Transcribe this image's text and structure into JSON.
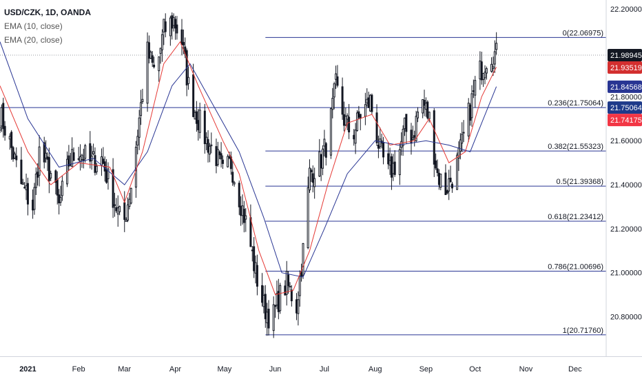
{
  "legend": {
    "symbol": "USD/CZK, 1D, OANDA",
    "ema10": "EMA (10, close)",
    "ema20": "EMA (20, close)"
  },
  "colors": {
    "candle": "#131722",
    "ema10": "#e53935",
    "ema20": "#283593",
    "fib": "#283593",
    "price_badge": "#131722",
    "ema10_badge": "#d32f2f",
    "ema20_badge": "#283593",
    "fib_badge": "#1e3a8a",
    "red_badge": "#f23645"
  },
  "chart_data": {
    "type": "candlestick",
    "y_range": [
      20.62,
      22.24
    ],
    "y_ticks": [
      "22.20000",
      "21.80000",
      "21.60000",
      "21.40000",
      "21.20000",
      "21.00000",
      "20.80000"
    ],
    "y_tick_values": [
      22.2,
      21.8,
      21.6,
      21.4,
      21.2,
      21.0,
      20.8
    ],
    "x_labels": [
      {
        "label": "2021",
        "date": "2021-01-01",
        "bold": true
      },
      {
        "label": "Feb",
        "date": "2021-02-01"
      },
      {
        "label": "Mar",
        "date": "2021-03-01"
      },
      {
        "label": "Apr",
        "date": "2021-04-01"
      },
      {
        "label": "May",
        "date": "2021-05-01"
      },
      {
        "label": "Jun",
        "date": "2021-06-01"
      },
      {
        "label": "Jul",
        "date": "2021-07-01"
      },
      {
        "label": "Aug",
        "date": "2021-08-01"
      },
      {
        "label": "Sep",
        "date": "2021-09-01"
      },
      {
        "label": "Oct",
        "date": "2021-10-01"
      },
      {
        "label": "Nov",
        "date": "2021-11-01"
      },
      {
        "label": "Dec",
        "date": "2021-12-01"
      }
    ],
    "x_range": [
      "2020-12-15",
      "2021-12-20"
    ],
    "fib_levels": [
      {
        "label": "0(22.06975)",
        "value": 22.06975
      },
      {
        "label": "0.236(21.75064)",
        "value": 21.75064
      },
      {
        "label": "0.382(21.55323)",
        "value": 21.55323
      },
      {
        "label": "0.5(21.39368)",
        "value": 21.39368
      },
      {
        "label": "0.618(21.23412)",
        "value": 21.23412
      },
      {
        "label": "0.786(21.00696)",
        "value": 21.00696
      },
      {
        "label": "1(20.71760)",
        "value": 20.7176
      }
    ],
    "fib_start": "2021-05-26",
    "price_badges": [
      {
        "label": "21.98945",
        "value": 21.98945,
        "kind": "price"
      },
      {
        "label": "21.93519",
        "value": 21.93519,
        "kind": "ema10"
      },
      {
        "label": "21.84568",
        "value": 21.84568,
        "kind": "ema20"
      },
      {
        "label": "21.75064",
        "value": 21.75064,
        "kind": "fib"
      },
      {
        "label": "21.74175",
        "value": 21.74175,
        "kind": "red"
      }
    ],
    "current_price": 21.98945,
    "close_path": [
      [
        "2020-12-15",
        21.72
      ],
      [
        "2020-12-20",
        21.62
      ],
      [
        "2020-12-28",
        21.4
      ],
      [
        "2021-01-04",
        21.3
      ],
      [
        "2021-01-08",
        21.55
      ],
      [
        "2021-01-15",
        21.45
      ],
      [
        "2021-01-20",
        21.3
      ],
      [
        "2021-01-26",
        21.5
      ],
      [
        "2021-02-01",
        21.56
      ],
      [
        "2021-02-08",
        21.5
      ],
      [
        "2021-02-15",
        21.52
      ],
      [
        "2021-02-22",
        21.35
      ],
      [
        "2021-02-28",
        21.2
      ],
      [
        "2021-03-05",
        21.4
      ],
      [
        "2021-03-10",
        21.7
      ],
      [
        "2021-03-15",
        22.0
      ],
      [
        "2021-03-20",
        21.9
      ],
      [
        "2021-03-25",
        22.1
      ],
      [
        "2021-03-31",
        22.15
      ],
      [
        "2021-04-05",
        22.05
      ],
      [
        "2021-04-10",
        21.8
      ],
      [
        "2021-04-15",
        21.7
      ],
      [
        "2021-04-20",
        21.6
      ],
      [
        "2021-04-25",
        21.55
      ],
      [
        "2021-04-30",
        21.45
      ],
      [
        "2021-05-05",
        21.5
      ],
      [
        "2021-05-10",
        21.35
      ],
      [
        "2021-05-15",
        21.2
      ],
      [
        "2021-05-20",
        21.0
      ],
      [
        "2021-05-25",
        20.85
      ],
      [
        "2021-05-30",
        20.78
      ],
      [
        "2021-06-03",
        20.88
      ],
      [
        "2021-06-08",
        20.95
      ],
      [
        "2021-06-14",
        20.85
      ],
      [
        "2021-06-18",
        21.1
      ],
      [
        "2021-06-22",
        21.45
      ],
      [
        "2021-06-28",
        21.5
      ],
      [
        "2021-07-03",
        21.6
      ],
      [
        "2021-07-08",
        21.85
      ],
      [
        "2021-07-13",
        21.7
      ],
      [
        "2021-07-18",
        21.62
      ],
      [
        "2021-07-23",
        21.72
      ],
      [
        "2021-07-29",
        21.78
      ],
      [
        "2021-08-04",
        21.55
      ],
      [
        "2021-08-09",
        21.45
      ],
      [
        "2021-08-14",
        21.5
      ],
      [
        "2021-08-19",
        21.65
      ],
      [
        "2021-08-24",
        21.62
      ],
      [
        "2021-08-29",
        21.8
      ],
      [
        "2021-09-03",
        21.7
      ],
      [
        "2021-09-08",
        21.45
      ],
      [
        "2021-09-13",
        21.38
      ],
      [
        "2021-09-18",
        21.45
      ],
      [
        "2021-09-23",
        21.58
      ],
      [
        "2021-09-28",
        21.75
      ],
      [
        "2021-10-02",
        21.88
      ],
      [
        "2021-10-06",
        21.95
      ],
      [
        "2021-10-10",
        22.0
      ],
      [
        "2021-10-14",
        21.99
      ]
    ],
    "ema10": [
      [
        "2020-12-15",
        21.85
      ],
      [
        "2021-01-01",
        21.55
      ],
      [
        "2021-01-15",
        21.4
      ],
      [
        "2021-02-01",
        21.5
      ],
      [
        "2021-02-20",
        21.48
      ],
      [
        "2021-03-01",
        21.32
      ],
      [
        "2021-03-12",
        21.55
      ],
      [
        "2021-03-25",
        21.95
      ],
      [
        "2021-04-04",
        22.05
      ],
      [
        "2021-04-15",
        21.85
      ],
      [
        "2021-04-30",
        21.6
      ],
      [
        "2021-05-10",
        21.45
      ],
      [
        "2021-05-22",
        21.1
      ],
      [
        "2021-06-01",
        20.9
      ],
      [
        "2021-06-12",
        20.92
      ],
      [
        "2021-06-22",
        21.1
      ],
      [
        "2021-07-03",
        21.4
      ],
      [
        "2021-07-15",
        21.68
      ],
      [
        "2021-07-30",
        21.72
      ],
      [
        "2021-08-10",
        21.58
      ],
      [
        "2021-08-25",
        21.6
      ],
      [
        "2021-09-03",
        21.7
      ],
      [
        "2021-09-15",
        21.5
      ],
      [
        "2021-09-25",
        21.55
      ],
      [
        "2021-10-05",
        21.8
      ],
      [
        "2021-10-14",
        21.935
      ]
    ],
    "ema20": [
      [
        "2020-12-15",
        22.05
      ],
      [
        "2021-01-01",
        21.7
      ],
      [
        "2021-01-20",
        21.48
      ],
      [
        "2021-02-10",
        21.52
      ],
      [
        "2021-03-01",
        21.4
      ],
      [
        "2021-03-15",
        21.55
      ],
      [
        "2021-03-30",
        21.85
      ],
      [
        "2021-04-10",
        21.95
      ],
      [
        "2021-04-25",
        21.75
      ],
      [
        "2021-05-10",
        21.55
      ],
      [
        "2021-05-25",
        21.25
      ],
      [
        "2021-06-05",
        21.0
      ],
      [
        "2021-06-18",
        20.98
      ],
      [
        "2021-07-01",
        21.2
      ],
      [
        "2021-07-15",
        21.45
      ],
      [
        "2021-08-01",
        21.6
      ],
      [
        "2021-08-15",
        21.58
      ],
      [
        "2021-09-01",
        21.6
      ],
      [
        "2021-09-15",
        21.58
      ],
      [
        "2021-09-28",
        21.55
      ],
      [
        "2021-10-05",
        21.68
      ],
      [
        "2021-10-14",
        21.846
      ]
    ]
  }
}
